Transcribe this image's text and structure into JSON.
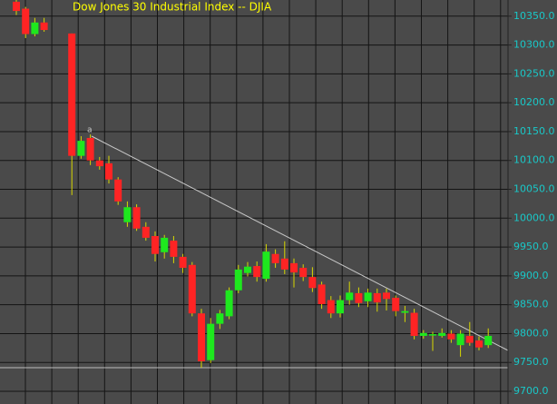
{
  "chart_data": {
    "type": "candlestick",
    "title": "Dow Jones 30 Industrial Index -- DJIA",
    "annotation": "a",
    "open": [
      10375,
      10363,
      10319,
      10339,
      null,
      null,
      10320,
      10108,
      10139,
      10100,
      10095,
      10067,
      9993,
      10019,
      9985,
      9969,
      9941,
      9961,
      9933,
      9919,
      9835,
      9754,
      9817,
      9830,
      9875,
      9905,
      9917,
      9895,
      9938,
      9930,
      9922,
      9914,
      9898,
      9885,
      9858,
      9835,
      9858,
      9870,
      9856,
      9870,
      9871,
      9862,
      9836,
      9836,
      9796,
      9799,
      9796,
      9800,
      9780,
      9796,
      9788,
      9780
    ],
    "high": [
      10378,
      10366,
      10347,
      10347,
      null,
      null,
      10320,
      10142,
      10145,
      10106,
      10108,
      10071,
      10029,
      10024,
      9993,
      9977,
      9971,
      9969,
      9938,
      9924,
      9843,
      9827,
      9841,
      9880,
      9919,
      9924,
      9925,
      9955,
      9946,
      9960,
      9930,
      9920,
      9915,
      9890,
      9865,
      9866,
      9890,
      9880,
      9878,
      9878,
      9878,
      9866,
      9848,
      9843,
      9806,
      9803,
      9809,
      9806,
      9806,
      9820,
      9795,
      9809
    ],
    "low": [
      10352,
      10312,
      10315,
      10323,
      null,
      null,
      10040,
      10103,
      10092,
      10084,
      10060,
      10023,
      9985,
      9978,
      9961,
      9925,
      9930,
      9922,
      9905,
      9830,
      9741,
      9749,
      9808,
      9825,
      9870,
      9899,
      9890,
      9890,
      9914,
      9903,
      9880,
      9891,
      9872,
      9843,
      9827,
      9828,
      9850,
      9846,
      9846,
      9838,
      9840,
      9830,
      9820,
      9790,
      9791,
      9770,
      9793,
      9784,
      9760,
      9779,
      9771,
      9775
    ],
    "close": [
      10359,
      10319,
      10339,
      10326,
      null,
      null,
      10108,
      10134,
      10100,
      10090,
      10067,
      10029,
      10019,
      9982,
      9966,
      9938,
      9966,
      9933,
      9914,
      9835,
      9752,
      9817,
      9835,
      9875,
      9911,
      9916,
      9898,
      9942,
      9922,
      9911,
      9906,
      9898,
      9879,
      9851,
      9835,
      9858,
      9871,
      9853,
      9871,
      9854,
      9860,
      9839,
      9839,
      9796,
      9801,
      9799,
      9801,
      9790,
      9800,
      9784,
      9776,
      9796
    ],
    "up_color": "#1ee81e",
    "down_color": "#ff2424",
    "wick_color": "#d8d800",
    "ylim": [
      9678,
      10378
    ],
    "yticks": [
      {
        "value": 9700,
        "label": "9700.0"
      },
      {
        "value": 9750,
        "label": "9750.0"
      },
      {
        "value": 9800,
        "label": "9800.0"
      },
      {
        "value": 9850,
        "label": "9850.0"
      },
      {
        "value": 9900,
        "label": "9900.0"
      },
      {
        "value": 9950,
        "label": "9950.0"
      },
      {
        "value": 10000,
        "label": "10000.0"
      },
      {
        "value": 10050,
        "label": "10050.0"
      },
      {
        "value": 10100,
        "label": "10100.0"
      },
      {
        "value": 10150,
        "label": "10150.0"
      },
      {
        "value": 10200,
        "label": "10200.0"
      },
      {
        "value": 10250,
        "label": "10250.0"
      },
      {
        "value": 10300,
        "label": "10300.0"
      },
      {
        "value": 10350,
        "label": "10350.0"
      }
    ],
    "grid": true
  }
}
